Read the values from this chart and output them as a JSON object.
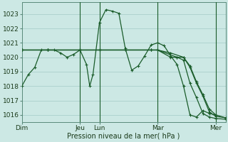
{
  "background_color": "#cce8e4",
  "grid_color": "#aacfcc",
  "line_color": "#1a5c2a",
  "ylabel": "Pression niveau de la mer( hPa )",
  "ylim": [
    1015.5,
    1023.8
  ],
  "yticks": [
    1016,
    1017,
    1018,
    1019,
    1020,
    1021,
    1022,
    1023
  ],
  "day_labels": [
    "Dim",
    "Jeu",
    "Lun",
    "Mar",
    "Mer"
  ],
  "day_positions": [
    0,
    72,
    96,
    168,
    240
  ],
  "xlim": [
    0,
    252
  ],
  "vline_positions": [
    72,
    96,
    168,
    240
  ],
  "series1_x": [
    0,
    8,
    16,
    24,
    32,
    40,
    48,
    56,
    64,
    72,
    80,
    84,
    88,
    96,
    104,
    112,
    120,
    128,
    136,
    144,
    152,
    160,
    168,
    176,
    184,
    192,
    200,
    208,
    216,
    224,
    232,
    240
  ],
  "series1_y": [
    1018.0,
    1018.8,
    1019.3,
    1020.5,
    1020.5,
    1020.5,
    1020.3,
    1020.0,
    1020.2,
    1020.5,
    1019.5,
    1018.0,
    1018.8,
    1022.4,
    1023.3,
    1023.2,
    1023.05,
    1020.6,
    1019.1,
    1019.4,
    1020.1,
    1020.85,
    1021.0,
    1020.8,
    1020.1,
    1019.5,
    1018.0,
    1016.0,
    1015.85,
    1016.3,
    1016.1,
    1016.0
  ],
  "series2_x": [
    0,
    32,
    72,
    96,
    128,
    160,
    168,
    184,
    200,
    208,
    216,
    224,
    232,
    240,
    252
  ],
  "series2_y": [
    1020.5,
    1020.5,
    1020.5,
    1020.5,
    1020.5,
    1020.5,
    1020.5,
    1020.3,
    1020.0,
    1019.4,
    1018.3,
    1017.4,
    1016.4,
    1016.0,
    1015.8
  ],
  "series3_x": [
    0,
    32,
    72,
    96,
    128,
    160,
    168,
    184,
    192,
    200,
    208,
    216,
    224,
    232,
    240,
    252
  ],
  "series3_y": [
    1020.5,
    1020.5,
    1020.5,
    1020.5,
    1020.5,
    1020.5,
    1020.5,
    1020.0,
    1020.0,
    1019.8,
    1018.2,
    1017.2,
    1016.1,
    1015.85,
    1015.75,
    1015.7
  ],
  "series4_x": [
    0,
    32,
    72,
    96,
    128,
    160,
    168,
    192,
    200,
    208,
    216,
    224,
    232,
    240,
    252
  ],
  "series4_y": [
    1020.5,
    1020.5,
    1020.5,
    1020.5,
    1020.5,
    1020.5,
    1020.5,
    1020.0,
    1020.0,
    1019.3,
    1018.2,
    1017.3,
    1016.2,
    1015.9,
    1015.8
  ]
}
